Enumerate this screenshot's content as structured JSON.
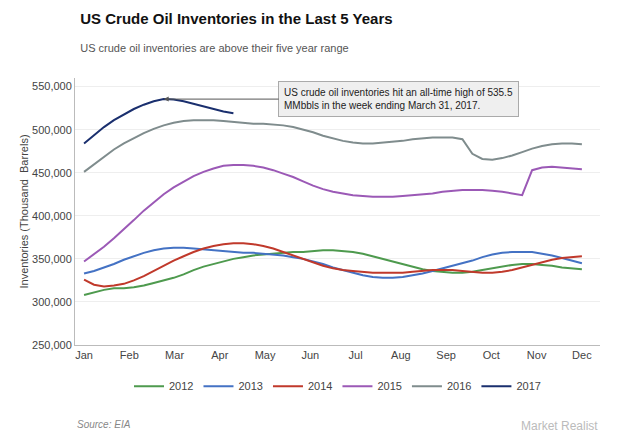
{
  "chart_data": {
    "type": "line",
    "title": "US Crude Oil Inventories in the Last 5 Years",
    "subtitle": "US crude oil inventories are above their five year range",
    "ylabel": "Inventories (Thousand  Barrels)",
    "annotation": "US crude oil inventories hit an all-time high of 535.5\nMMbbls in the week ending March 31, 2017.",
    "source": "Source: EIA",
    "watermark": "Market Realist",
    "x": [
      0,
      0.22,
      0.44,
      0.66,
      0.88,
      1.1,
      1.32,
      1.54,
      1.76,
      1.98,
      2.2,
      2.42,
      2.64,
      2.86,
      3.08,
      3.3,
      3.52,
      3.74,
      3.96,
      4.18,
      4.4,
      4.62,
      4.84,
      5.06,
      5.28,
      5.5,
      5.72,
      5.94,
      6.16,
      6.38,
      6.6,
      6.82,
      7.04,
      7.26,
      7.48,
      7.7,
      7.92,
      8.14,
      8.36,
      8.58,
      8.8,
      9.02,
      9.24,
      9.46,
      9.68,
      9.9,
      10.12,
      10.34,
      10.56,
      10.78,
      11.0
    ],
    "xlim": [
      -0.2,
      11.4
    ],
    "xticks": [
      {
        "value": 0,
        "label": "Jan"
      },
      {
        "value": 1,
        "label": "Feb"
      },
      {
        "value": 2,
        "label": "Mar"
      },
      {
        "value": 3,
        "label": "Apr"
      },
      {
        "value": 4,
        "label": "May"
      },
      {
        "value": 5,
        "label": "Jun"
      },
      {
        "value": 6,
        "label": "Jul"
      },
      {
        "value": 7,
        "label": "Aug"
      },
      {
        "value": 8,
        "label": "Sep"
      },
      {
        "value": 9,
        "label": "Oct"
      },
      {
        "value": 10,
        "label": "Nov"
      },
      {
        "value": 11,
        "label": "Dec"
      }
    ],
    "ylim": [
      250000,
      560000
    ],
    "yticks": [
      {
        "value": 250000,
        "label": "250,000"
      },
      {
        "value": 300000,
        "label": "300,000"
      },
      {
        "value": 350000,
        "label": "350,000"
      },
      {
        "value": 400000,
        "label": "400,000"
      },
      {
        "value": 450000,
        "label": "450,000"
      },
      {
        "value": 500000,
        "label": "500,000"
      },
      {
        "value": 550000,
        "label": "550,000"
      }
    ],
    "grid": true,
    "legend": "bottom",
    "series": [
      {
        "name": "2012",
        "color": "#4e9a4e",
        "values": [
          308000,
          311000,
          314000,
          316000,
          316000,
          317000,
          319000,
          322000,
          325000,
          328000,
          332000,
          337000,
          341000,
          344000,
          347000,
          350000,
          352000,
          354000,
          355000,
          356000,
          357000,
          358000,
          358000,
          359000,
          360000,
          360000,
          359000,
          358000,
          356000,
          353000,
          350000,
          347000,
          344000,
          341000,
          338000,
          336000,
          335000,
          334000,
          334000,
          335000,
          337000,
          339000,
          341000,
          343000,
          344000,
          344000,
          343000,
          342000,
          340000,
          339000,
          338000
        ]
      },
      {
        "name": "2013",
        "color": "#4472c4",
        "values": [
          333000,
          336000,
          340000,
          344000,
          349000,
          353000,
          357000,
          360000,
          362000,
          363000,
          363000,
          362000,
          361000,
          360000,
          359000,
          358000,
          357000,
          357000,
          356000,
          355000,
          354000,
          352000,
          350000,
          347000,
          344000,
          340000,
          337000,
          334000,
          331000,
          329000,
          328000,
          328000,
          329000,
          331000,
          333000,
          336000,
          339000,
          342000,
          345000,
          348000,
          352000,
          355000,
          357000,
          358000,
          358000,
          358000,
          356000,
          354000,
          351000,
          348000,
          345000
        ]
      },
      {
        "name": "2014",
        "color": "#c0392b",
        "values": [
          326000,
          320000,
          318000,
          319000,
          321000,
          325000,
          330000,
          336000,
          342000,
          348000,
          353000,
          358000,
          362000,
          365000,
          367000,
          368000,
          368000,
          367000,
          365000,
          362000,
          358000,
          354000,
          350000,
          346000,
          342000,
          339000,
          337000,
          336000,
          335000,
          334000,
          334000,
          334000,
          334000,
          335000,
          336000,
          337000,
          337000,
          337000,
          336000,
          335000,
          334000,
          334000,
          335000,
          337000,
          340000,
          343000,
          346000,
          349000,
          351000,
          352000,
          353000
        ]
      },
      {
        "name": "2015",
        "color": "#9b59b6",
        "values": [
          347000,
          355000,
          364000,
          374000,
          384000,
          395000,
          406000,
          416000,
          425000,
          433000,
          440000,
          446000,
          451000,
          455000,
          458000,
          459000,
          459000,
          458000,
          456000,
          453000,
          449000,
          445000,
          440000,
          435000,
          431000,
          428000,
          426000,
          424000,
          423000,
          422000,
          422000,
          422000,
          423000,
          424000,
          425000,
          426000,
          428000,
          429000,
          430000,
          430000,
          430000,
          429000,
          428000,
          426000,
          424000,
          453000,
          456000,
          457000,
          456000,
          455000,
          454000
        ]
      },
      {
        "name": "2016",
        "color": "#7f8c8d",
        "values": [
          451000,
          460000,
          469000,
          477000,
          484000,
          490000,
          496000,
          501000,
          505000,
          508000,
          510000,
          511000,
          511000,
          511000,
          510000,
          509000,
          508000,
          507000,
          507000,
          506000,
          505000,
          503000,
          500000,
          497000,
          493000,
          490000,
          487000,
          485000,
          484000,
          484000,
          485000,
          486000,
          487000,
          489000,
          490000,
          491000,
          491000,
          491000,
          489000,
          472000,
          466000,
          465000,
          467000,
          470000,
          474000,
          478000,
          481000,
          483000,
          484000,
          484000,
          483000
        ]
      },
      {
        "name": "2017",
        "color": "#1a2f6e",
        "values": [
          484000,
          494000,
          503000,
          511000,
          518000,
          524000,
          529000,
          533000,
          535500,
          535000,
          533000,
          530000,
          527000,
          524000,
          521000,
          519000,
          null,
          null,
          null,
          null,
          null,
          null,
          null,
          null,
          null,
          null,
          null,
          null,
          null,
          null,
          null,
          null,
          null,
          null,
          null,
          null,
          null,
          null,
          null,
          null,
          null,
          null,
          null,
          null,
          null,
          null,
          null,
          null,
          null,
          null,
          null
        ]
      }
    ]
  }
}
